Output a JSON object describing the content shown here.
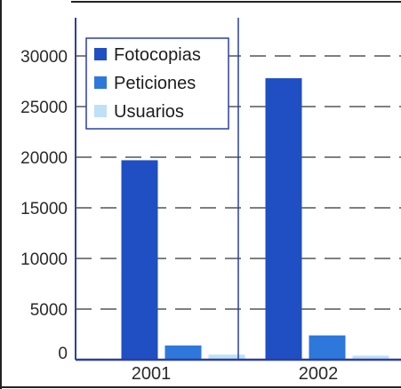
{
  "chart_data": {
    "type": "bar",
    "categories": [
      "2001",
      "2002"
    ],
    "series": [
      {
        "name": "Fotocopias",
        "values": [
          19700,
          27800
        ],
        "color": "#1f4fc2"
      },
      {
        "name": "Peticiones",
        "values": [
          1400,
          2400
        ],
        "color": "#2e78dc"
      },
      {
        "name": "Usuarios",
        "values": [
          500,
          400
        ],
        "color": "#bfe0f6"
      }
    ],
    "ylim": [
      0,
      30000
    ],
    "yticks": [
      0,
      5000,
      10000,
      15000,
      20000,
      25000,
      30000
    ],
    "grid": true,
    "legend_position": "top-left"
  },
  "colors": {
    "axis": "#2b3fa6",
    "grid": "#555555",
    "frame": "#222222"
  }
}
